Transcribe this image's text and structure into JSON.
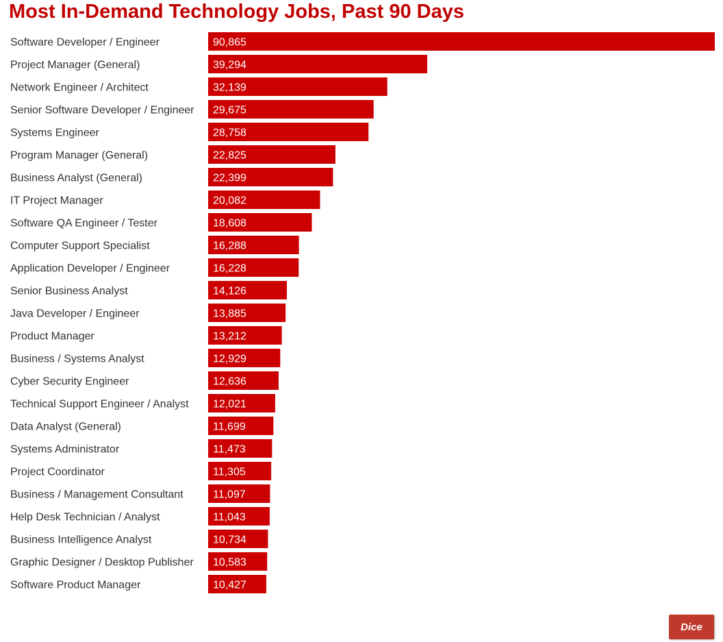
{
  "title": "Most In-Demand Technology Jobs, Past 90 Days",
  "colors": {
    "bar": "#cc0000",
    "title": "#c00000",
    "label": "#333333",
    "value": "#ffffff"
  },
  "chart_data": {
    "type": "bar",
    "orientation": "horizontal",
    "title": "Most In-Demand Technology Jobs, Past 90 Days",
    "categories": [
      "Software Developer / Engineer",
      "Project Manager (General)",
      "Network Engineer / Architect",
      "Senior Software Developer / Engineer",
      "Systems Engineer",
      "Program Manager (General)",
      "Business Analyst (General)",
      "IT Project Manager",
      "Software QA Engineer / Tester",
      "Computer Support Specialist",
      "Application Developer / Engineer",
      "Senior Business Analyst",
      "Java Developer / Engineer",
      "Product Manager",
      "Business / Systems Analyst",
      "Cyber Security Engineer",
      "Technical Support Engineer / Analyst",
      "Data Analyst (General)",
      "Systems Administrator",
      "Project Coordinator",
      "Business / Management Consultant",
      "Help Desk Technician / Analyst",
      "Business Intelligence Analyst",
      "Graphic Designer / Desktop Publisher",
      "Software Product Manager"
    ],
    "values": [
      90865,
      39294,
      32139,
      29675,
      28758,
      22825,
      22399,
      20082,
      18608,
      16288,
      16228,
      14126,
      13885,
      13212,
      12929,
      12636,
      12021,
      11699,
      11473,
      11305,
      11097,
      11043,
      10734,
      10583,
      10427
    ],
    "value_labels": [
      "90,865",
      "39,294",
      "32,139",
      "29,675",
      "28,758",
      "22,825",
      "22,399",
      "20,082",
      "18,608",
      "16,288",
      "16,228",
      "14,126",
      "13,885",
      "13,212",
      "12,929",
      "12,636",
      "12,021",
      "11,699",
      "11,473",
      "11,305",
      "11,097",
      "11,043",
      "10,734",
      "10,583",
      "10,427"
    ],
    "xlim": [
      0,
      90865
    ],
    "grid": false,
    "legend": "none"
  },
  "logo": {
    "text": "Dice"
  }
}
